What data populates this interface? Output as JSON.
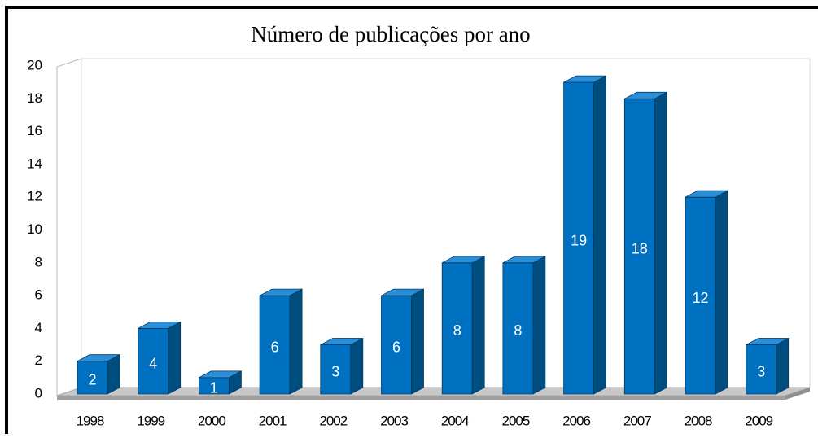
{
  "chart_data": {
    "type": "bar3d",
    "title": "Número de publicações por ano",
    "categories": [
      "1998",
      "1999",
      "2000",
      "2001",
      "2002",
      "2003",
      "2004",
      "2005",
      "2006",
      "2007",
      "2008",
      "2009"
    ],
    "values": [
      2,
      4,
      1,
      6,
      3,
      6,
      8,
      8,
      19,
      18,
      12,
      3
    ],
    "color": "#0070c0",
    "ylim": [
      0,
      20
    ],
    "yticks": [
      0,
      2,
      4,
      6,
      8,
      10,
      12,
      14,
      16,
      18,
      20
    ],
    "grid": false
  }
}
